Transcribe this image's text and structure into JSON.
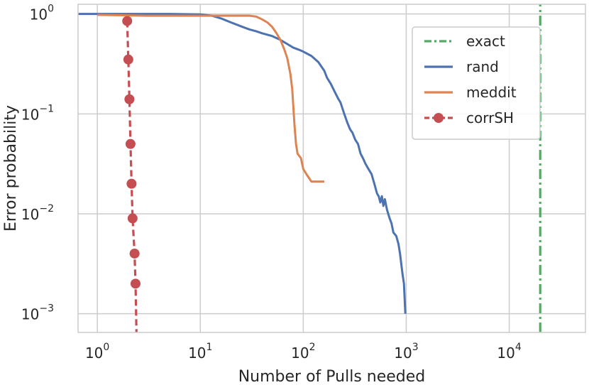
{
  "chart_data": {
    "type": "line",
    "xlabel": "Number of Pulls needed",
    "ylabel": "Error probability",
    "xscale": "log",
    "yscale": "log",
    "xlim": [
      0.65,
      55000
    ],
    "ylim": [
      0.00065,
      1.25
    ],
    "grid": true,
    "legend_position": "top-right",
    "x_ticks": [
      {
        "base": "10",
        "exp": "0",
        "value": 1
      },
      {
        "base": "10",
        "exp": "1",
        "value": 10
      },
      {
        "base": "10",
        "exp": "2",
        "value": 100
      },
      {
        "base": "10",
        "exp": "3",
        "value": 1000
      },
      {
        "base": "10",
        "exp": "4",
        "value": 10000
      }
    ],
    "y_ticks": [
      {
        "base": "10",
        "exp": "0",
        "value": 1
      },
      {
        "base": "10",
        "exp": "−1",
        "value": 0.1
      },
      {
        "base": "10",
        "exp": "−2",
        "value": 0.01
      },
      {
        "base": "10",
        "exp": "−3",
        "value": 0.001
      }
    ],
    "series": [
      {
        "name": "exact",
        "color": "#55a868",
        "style": "dashdot",
        "points": [
          [
            20000,
            0.00065
          ],
          [
            20000,
            1.25
          ]
        ]
      },
      {
        "name": "rand",
        "color": "#4c72b0",
        "style": "solid",
        "points": [
          [
            0.65,
            1.0
          ],
          [
            5,
            1.0
          ],
          [
            10,
            0.99
          ],
          [
            13,
            0.96
          ],
          [
            16,
            0.9
          ],
          [
            20,
            0.82
          ],
          [
            25,
            0.75
          ],
          [
            30,
            0.7
          ],
          [
            35,
            0.67
          ],
          [
            40,
            0.64
          ],
          [
            50,
            0.6
          ],
          [
            60,
            0.55
          ],
          [
            70,
            0.5
          ],
          [
            80,
            0.46
          ],
          [
            90,
            0.44
          ],
          [
            100,
            0.42
          ],
          [
            120,
            0.38
          ],
          [
            140,
            0.33
          ],
          [
            160,
            0.27
          ],
          [
            170,
            0.23
          ],
          [
            185,
            0.2
          ],
          [
            200,
            0.17
          ],
          [
            220,
            0.14
          ],
          [
            230,
            0.13
          ],
          [
            250,
            0.1
          ],
          [
            270,
            0.08
          ],
          [
            285,
            0.07
          ],
          [
            300,
            0.065
          ],
          [
            320,
            0.055
          ],
          [
            340,
            0.05
          ],
          [
            360,
            0.04
          ],
          [
            380,
            0.036
          ],
          [
            400,
            0.032
          ],
          [
            430,
            0.028
          ],
          [
            460,
            0.025
          ],
          [
            490,
            0.02
          ],
          [
            520,
            0.016
          ],
          [
            540,
            0.015
          ],
          [
            560,
            0.013
          ],
          [
            580,
            0.015
          ],
          [
            600,
            0.012
          ],
          [
            620,
            0.014
          ],
          [
            650,
            0.011
          ],
          [
            690,
            0.009
          ],
          [
            720,
            0.008
          ],
          [
            750,
            0.0065
          ],
          [
            800,
            0.006
          ],
          [
            840,
            0.005
          ],
          [
            870,
            0.004
          ],
          [
            900,
            0.003
          ],
          [
            920,
            0.0025
          ],
          [
            950,
            0.002
          ],
          [
            980,
            0.001
          ]
        ]
      },
      {
        "name": "meddit",
        "color": "#dd8452",
        "style": "solid",
        "points": [
          [
            1.0,
            0.98
          ],
          [
            3,
            0.96
          ],
          [
            10,
            0.96
          ],
          [
            30,
            0.96
          ],
          [
            35,
            0.94
          ],
          [
            40,
            0.88
          ],
          [
            45,
            0.82
          ],
          [
            50,
            0.74
          ],
          [
            55,
            0.64
          ],
          [
            60,
            0.55
          ],
          [
            65,
            0.45
          ],
          [
            70,
            0.36
          ],
          [
            75,
            0.25
          ],
          [
            78,
            0.18
          ],
          [
            80,
            0.12
          ],
          [
            82,
            0.08
          ],
          [
            85,
            0.05
          ],
          [
            88,
            0.04
          ],
          [
            95,
            0.036
          ],
          [
            100,
            0.028
          ],
          [
            110,
            0.024
          ],
          [
            120,
            0.021
          ],
          [
            160,
            0.021
          ]
        ]
      },
      {
        "name": "corrSH",
        "color": "#c44e52",
        "style": "dashed-markers",
        "points": [
          [
            1.95,
            0.85
          ],
          [
            2.0,
            0.35
          ],
          [
            2.05,
            0.14
          ],
          [
            2.1,
            0.05
          ],
          [
            2.15,
            0.02
          ],
          [
            2.2,
            0.009
          ],
          [
            2.3,
            0.004
          ],
          [
            2.35,
            0.002
          ]
        ],
        "line_extends_to": [
          2.4,
          0.00065
        ]
      }
    ]
  }
}
